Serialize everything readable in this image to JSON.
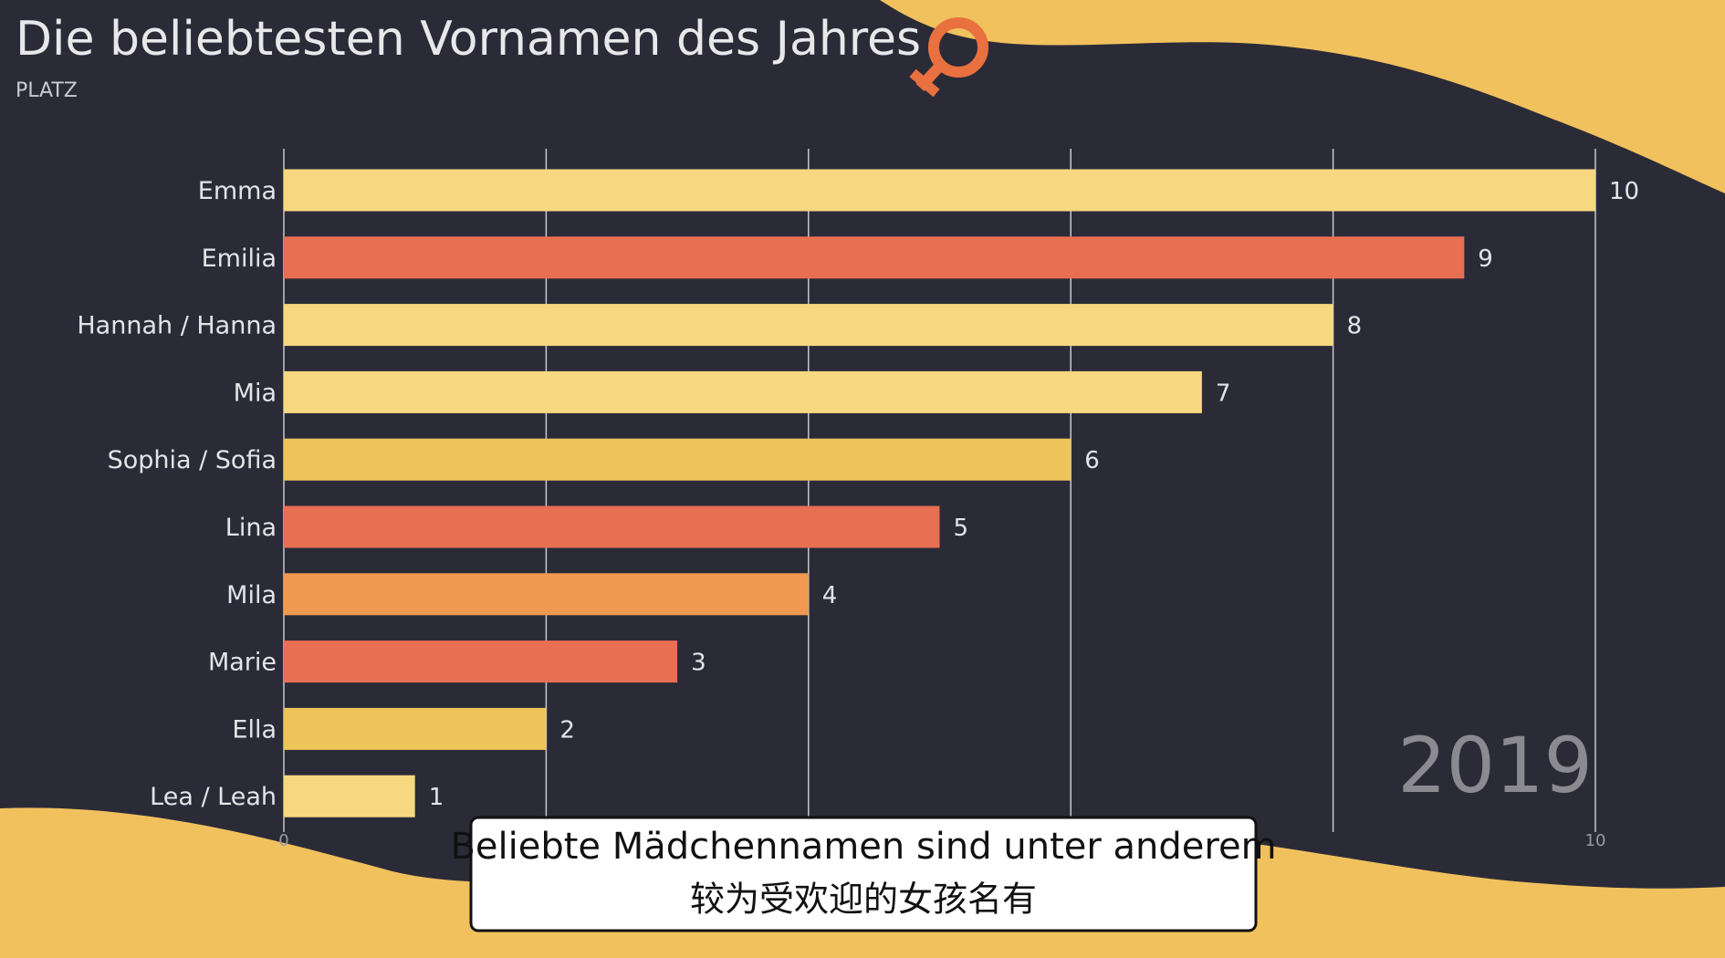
{
  "chart_data": {
    "type": "bar",
    "orientation": "horizontal",
    "title": "Die beliebtesten Vornamen des Jahres",
    "subtitle": "PLATZ",
    "categories": [
      "Emma",
      "Emilia",
      "Hannah / Hanna",
      "Mia",
      "Sophia / Sofia",
      "Lina",
      "Mila",
      "Marie",
      "Ella",
      "Lea / Leah"
    ],
    "values": [
      10,
      9,
      8,
      7,
      6,
      5,
      4,
      3,
      2,
      1
    ],
    "colors": [
      "#f6d880",
      "#e86f52",
      "#f6d880",
      "#f6d880",
      "#edc55b",
      "#e86f52",
      "#ef9a50",
      "#e86f52",
      "#edc55b",
      "#f6d880"
    ],
    "xlim": [
      0,
      10
    ],
    "xticks": [
      0,
      10
    ],
    "x_gridlines": [
      0,
      2,
      4,
      6,
      8,
      10
    ],
    "annotation": "2019",
    "caption": [
      "Beliebte Mädchennamen sind unter anderem",
      "较为受欢迎的女孩名有"
    ]
  }
}
